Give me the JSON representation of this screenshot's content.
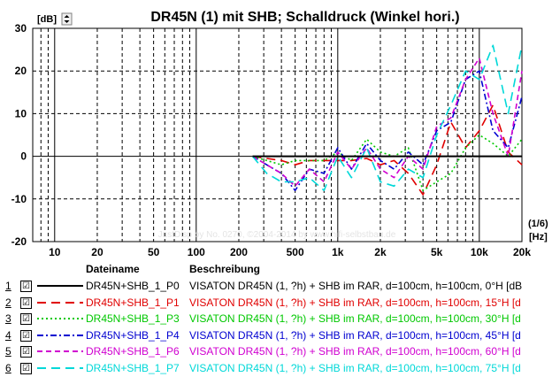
{
  "chart_data": {
    "type": "line",
    "title": "DR45N (1) mit SHB; Schalldruck (Winkel hori.)",
    "ylabel": "[dB]",
    "xunit_line1": "(1/6)",
    "xunit_line2": "[Hz]",
    "xscale": "log",
    "xlim": [
      7,
      20000
    ],
    "ylim": [
      -20,
      30
    ],
    "grid": true,
    "yticks": [
      30,
      20,
      10,
      0,
      -10,
      -20
    ],
    "xticks": [
      {
        "value": 10,
        "label": "10"
      },
      {
        "value": 20,
        "label": "20"
      },
      {
        "value": 50,
        "label": "50"
      },
      {
        "value": 100,
        "label": "100"
      },
      {
        "value": 200,
        "label": "200"
      },
      {
        "value": 500,
        "label": "500"
      },
      {
        "value": 1000,
        "label": "1k"
      },
      {
        "value": 2000,
        "label": "2k"
      },
      {
        "value": 5000,
        "label": "5k"
      },
      {
        "value": 10000,
        "label": "10k"
      },
      {
        "value": 20000,
        "label": "20k"
      }
    ],
    "watermark": "JustDisp by No. 0270, ©2004-2014 by www.hifi-selbstbau.de",
    "x": [
      250,
      315,
      400,
      500,
      630,
      800,
      1000,
      1250,
      1600,
      2000,
      2500,
      3150,
      4000,
      5000,
      6300,
      8000,
      10000,
      12500,
      16000,
      20000
    ],
    "series": [
      {
        "name": "DR45N+SHB_1_P0",
        "color": "#000000",
        "dash": "solid",
        "values": [
          0,
          0,
          0,
          0,
          0,
          0,
          0,
          0,
          0,
          0,
          0,
          0,
          0,
          0,
          0,
          0,
          0,
          0,
          0,
          0
        ]
      },
      {
        "name": "DR45N+SHB_1_P1",
        "color": "#e00000",
        "dash": "long-dash",
        "values": [
          0,
          -0.5,
          -1,
          -2,
          -1,
          -1,
          -1,
          -1,
          -0.5,
          -2,
          -1,
          -4,
          -9,
          -2,
          8,
          2,
          6,
          12,
          1,
          -2
        ]
      },
      {
        "name": "DR45N+SHB_1_P3",
        "color": "#00c800",
        "dash": "dot",
        "values": [
          0,
          -1,
          -2,
          -1,
          -1,
          -1,
          1,
          -1,
          4,
          1,
          0,
          2,
          -8,
          -6,
          -4,
          2,
          5,
          3,
          0,
          4
        ]
      },
      {
        "name": "DR45N+SHB_1_P4",
        "color": "#0000d0",
        "dash": "dash-dot",
        "values": [
          0,
          -2,
          -4,
          -8,
          -3,
          -4,
          2,
          -3,
          3,
          -1,
          -3,
          1,
          -2,
          6,
          8,
          18,
          20,
          6,
          2,
          14
        ]
      },
      {
        "name": "DR45N+SHB_1_P6",
        "color": "#d000d0",
        "dash": "dash",
        "values": [
          0,
          -2,
          -4,
          -7,
          -3,
          -6,
          1,
          -3,
          2,
          -3,
          -5,
          0,
          -3,
          7,
          9,
          18,
          23,
          10,
          0,
          20
        ]
      },
      {
        "name": "DR45N+SHB_1_P7",
        "color": "#00d8d8",
        "dash": "long-dash",
        "values": [
          0,
          -4,
          -6,
          -6,
          -5,
          -8,
          0,
          -5,
          2,
          -6,
          -7,
          -3,
          -5,
          5,
          12,
          20,
          18,
          26,
          10,
          26
        ]
      }
    ]
  },
  "legend": {
    "col_name": "Dateiname",
    "col_desc": "Beschreibung",
    "rows": [
      {
        "num": "1",
        "check": "☑",
        "name": "DR45N+SHB_1_P0",
        "desc": "VISATON DR45N (1, ?h) + SHB im RAR, d=100cm, h=100cm, 0°H [dB",
        "color": "#000000",
        "dash": "solid"
      },
      {
        "num": "2",
        "check": "☑",
        "name": "DR45N+SHB_1_P1",
        "desc": "VISATON DR45N (1, ?h) + SHB im RAR, d=100cm, h=100cm, 15°H [d",
        "color": "#e00000",
        "dash": "long-dash"
      },
      {
        "num": "3",
        "check": "☑",
        "name": "DR45N+SHB_1_P3",
        "desc": "VISATON DR45N (1, ?h) + SHB im RAR, d=100cm, h=100cm, 30°H [d",
        "color": "#00c800",
        "dash": "dot"
      },
      {
        "num": "4",
        "check": "☑",
        "name": "DR45N+SHB_1_P4",
        "desc": "VISATON DR45N (1, ?h) + SHB im RAR, d=100cm, h=100cm, 45°H [d",
        "color": "#0000d0",
        "dash": "dash-dot"
      },
      {
        "num": "5",
        "check": "☑",
        "name": "DR45N+SHB_1_P6",
        "desc": "VISATON DR45N (1, ?h) + SHB im RAR, d=100cm, h=100cm, 60°H [d",
        "color": "#d000d0",
        "dash": "dash"
      },
      {
        "num": "6",
        "check": "☑",
        "name": "DR45N+SHB_1_P7",
        "desc": "VISATON DR45N (1, ?h) + SHB im RAR, d=100cm, h=100cm, 75°H [d",
        "color": "#00d8d8",
        "dash": "long-dash"
      }
    ]
  }
}
